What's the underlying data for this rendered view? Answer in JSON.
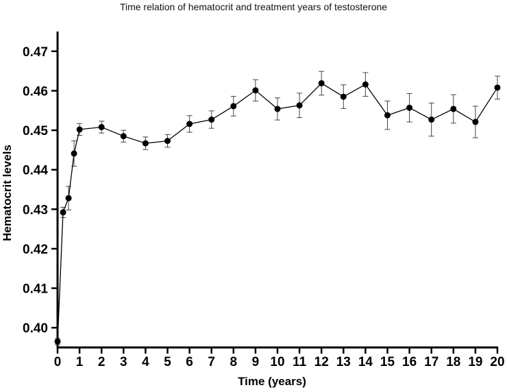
{
  "chart_data": {
    "type": "line",
    "title": "Time relation of hematocrit and treatment years of testosterone",
    "xlabel": "Time (years)",
    "ylabel": "Hematocrit levels",
    "xlim": [
      0,
      20
    ],
    "ylim": [
      0.395,
      0.475
    ],
    "x_ticks": [
      "0",
      "1",
      "2",
      "3",
      "4",
      "5",
      "6",
      "7",
      "8",
      "9",
      "10",
      "11",
      "12",
      "13",
      "14",
      "15",
      "16",
      "17",
      "18",
      "19",
      "20"
    ],
    "y_ticks": [
      "0.40",
      "0.41",
      "0.42",
      "0.43",
      "0.44",
      "0.45",
      "0.46",
      "0.47"
    ],
    "grid": false,
    "legend": "none",
    "line_color": "#000000",
    "series": [
      {
        "points": [
          {
            "x": 0,
            "y": 0.3965,
            "err": 0.0008
          },
          {
            "x": 0.25,
            "y": 0.4292,
            "err": 0.0013
          },
          {
            "x": 0.5,
            "y": 0.4328,
            "err": 0.003
          },
          {
            "x": 0.75,
            "y": 0.4441,
            "err": 0.0032
          },
          {
            "x": 1,
            "y": 0.4502,
            "err": 0.0015
          },
          {
            "x": 2,
            "y": 0.4508,
            "err": 0.0015
          },
          {
            "x": 3,
            "y": 0.4485,
            "err": 0.0015
          },
          {
            "x": 4,
            "y": 0.4467,
            "err": 0.0016
          },
          {
            "x": 5,
            "y": 0.4473,
            "err": 0.0016
          },
          {
            "x": 6,
            "y": 0.4516,
            "err": 0.0021
          },
          {
            "x": 7,
            "y": 0.4527,
            "err": 0.0022
          },
          {
            "x": 8,
            "y": 0.4561,
            "err": 0.0025
          },
          {
            "x": 9,
            "y": 0.4601,
            "err": 0.0027
          },
          {
            "x": 10,
            "y": 0.4554,
            "err": 0.0028
          },
          {
            "x": 11,
            "y": 0.4563,
            "err": 0.0031
          },
          {
            "x": 12,
            "y": 0.4619,
            "err": 0.003
          },
          {
            "x": 13,
            "y": 0.4585,
            "err": 0.003
          },
          {
            "x": 14,
            "y": 0.4616,
            "err": 0.003
          },
          {
            "x": 15,
            "y": 0.4538,
            "err": 0.0036
          },
          {
            "x": 16,
            "y": 0.4557,
            "err": 0.0036
          },
          {
            "x": 17,
            "y": 0.4527,
            "err": 0.0042
          },
          {
            "x": 18,
            "y": 0.4554,
            "err": 0.0036
          },
          {
            "x": 19,
            "y": 0.4521,
            "err": 0.004
          },
          {
            "x": 20,
            "y": 0.4608,
            "err": 0.0029
          }
        ]
      }
    ]
  }
}
